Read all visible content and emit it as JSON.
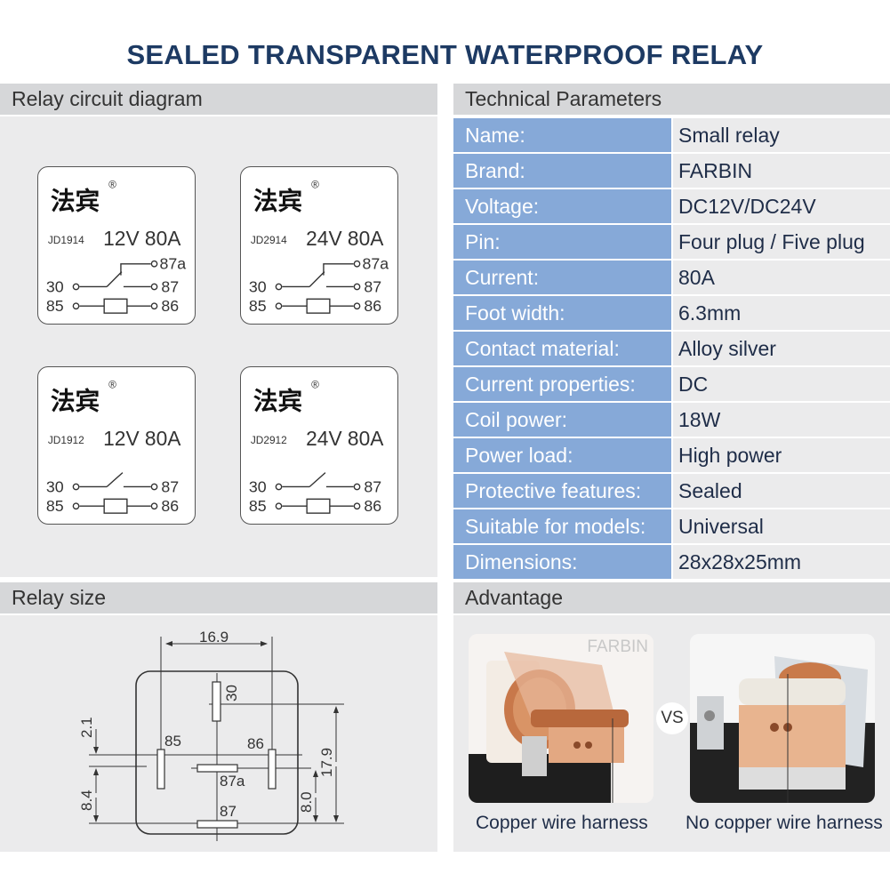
{
  "title": "SEALED TRANSPARENT WATERPROOF RELAY",
  "circuit": {
    "header": "Relay circuit diagram",
    "cards": [
      {
        "brand": "法宾",
        "reg": "®",
        "model": "JD1914",
        "rating": "12V 80A",
        "type": "five-pin",
        "pins": [
          "30",
          "85",
          "87a",
          "87",
          "86"
        ]
      },
      {
        "brand": "法宾",
        "reg": "®",
        "model": "JD2914",
        "rating": "24V 80A",
        "type": "five-pin",
        "pins": [
          "30",
          "85",
          "87a",
          "87",
          "86"
        ]
      },
      {
        "brand": "法宾",
        "reg": "®",
        "model": "JD1912",
        "rating": "12V 80A",
        "type": "four-pin",
        "pins": [
          "30",
          "85",
          "",
          "87",
          "86"
        ]
      },
      {
        "brand": "法宾",
        "reg": "®",
        "model": "JD2912",
        "rating": "24V 80A",
        "type": "four-pin",
        "pins": [
          "30",
          "85",
          "",
          "87",
          "86"
        ]
      }
    ]
  },
  "size": {
    "header": "Relay size",
    "dims": {
      "width": "16.9",
      "top_offset": "2.1",
      "left_bottom": "8.4",
      "right_bottom": "8.0",
      "right_total": "17.9"
    },
    "pins": {
      "p30": "30",
      "p85": "85",
      "p86": "86",
      "p87a": "87a",
      "p87": "87"
    }
  },
  "params": {
    "header": "Technical Parameters",
    "rows": [
      {
        "k": "Name:",
        "v": "Small relay"
      },
      {
        "k": "Brand:",
        "v": "FARBIN"
      },
      {
        "k": "Voltage:",
        "v": "DC12V/DC24V"
      },
      {
        "k": "Pin:",
        "v": "Four plug / Five plug"
      },
      {
        "k": "Current:",
        "v": "80A"
      },
      {
        "k": "Foot width:",
        "v": "6.3mm"
      },
      {
        "k": "Contact material:",
        "v": "Alloy silver"
      },
      {
        "k": "Current properties:",
        "v": "DC"
      },
      {
        "k": "Coil power:",
        "v": "18W"
      },
      {
        "k": "Power load:",
        "v": "High power"
      },
      {
        "k": "Protective features:",
        "v": "Sealed"
      },
      {
        "k": "Suitable for models:",
        "v": "Universal"
      },
      {
        "k": "Dimensions:",
        "v": "28x28x25mm"
      }
    ]
  },
  "advantage": {
    "header": "Advantage",
    "watermark": "FARBIN",
    "vs": "VS",
    "left_caption": "Copper wire harness",
    "right_caption": "No copper wire harness"
  },
  "colors": {
    "title": "#1d3a63",
    "label_cell": "#86a9d8",
    "value_cell": "#ebebec",
    "header_bar": "#d6d7d9"
  }
}
